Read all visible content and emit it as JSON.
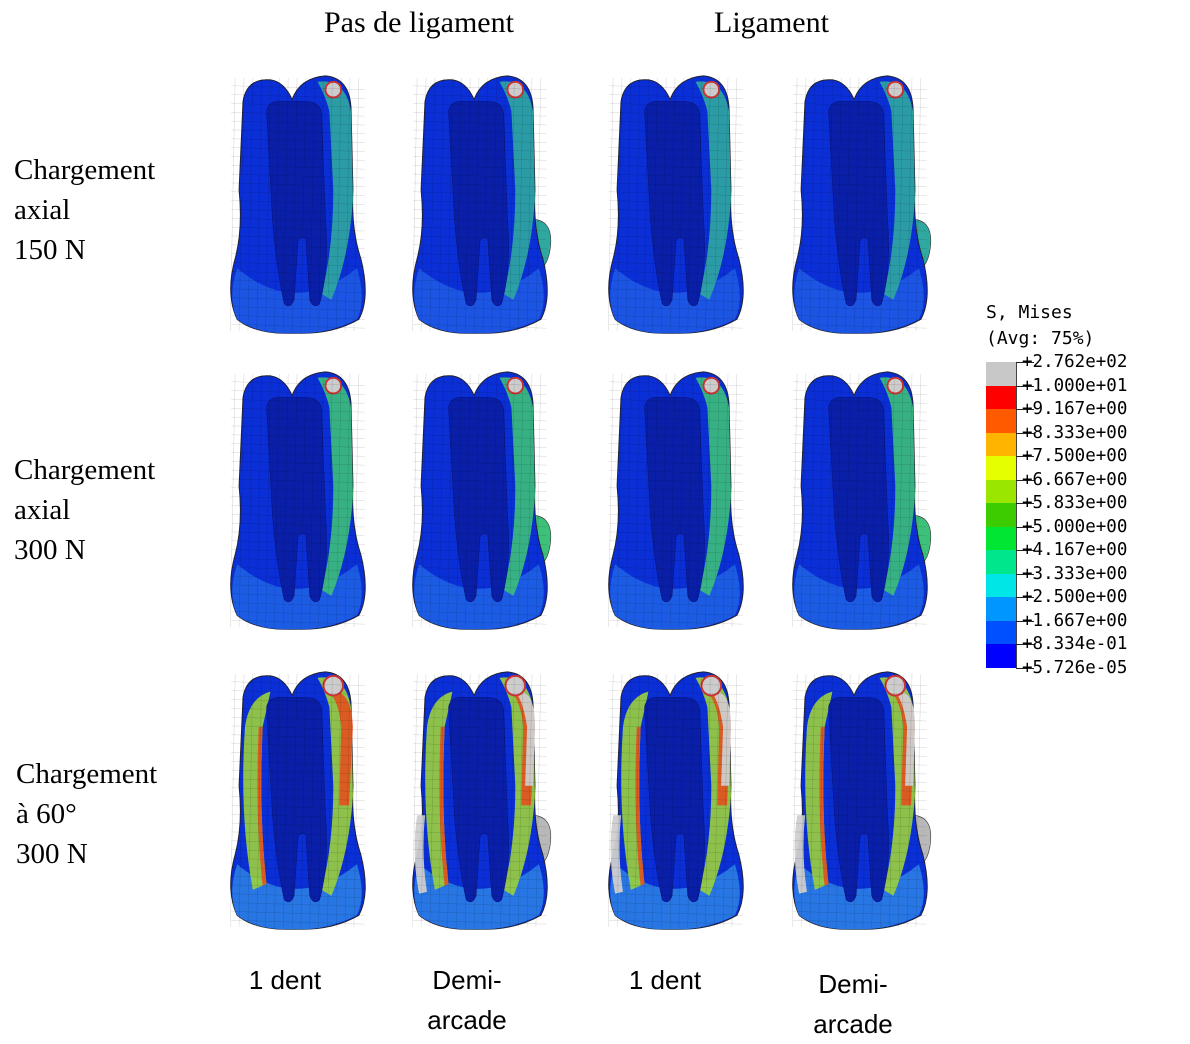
{
  "column_groups": [
    "Pas de ligament",
    "Ligament"
  ],
  "rows": [
    {
      "lines": [
        "Chargement",
        "axial",
        "150 N"
      ],
      "load": "axial150"
    },
    {
      "lines": [
        "Chargement",
        "axial",
        "300 N"
      ],
      "load": "axial300"
    },
    {
      "lines": [
        "Chargement",
        "à 60°",
        "300 N"
      ],
      "load": "oblique300"
    }
  ],
  "columns": [
    {
      "lines": [
        "1 dent"
      ],
      "group": "Pas de ligament"
    },
    {
      "lines": [
        "Demi-",
        "arcade"
      ],
      "group": "Pas de ligament"
    },
    {
      "lines": [
        "1 dent"
      ],
      "group": "Ligament"
    },
    {
      "lines": [
        "Demi-",
        "arcade"
      ],
      "group": "Ligament"
    }
  ],
  "legend": {
    "title_lines": [
      "S, Mises",
      "(Avg: 75%)"
    ],
    "values": [
      "+2.762e+02",
      "+1.000e+01",
      "+9.167e+00",
      "+8.333e+00",
      "+7.500e+00",
      "+6.667e+00",
      "+5.833e+00",
      "+5.000e+00",
      "+4.167e+00",
      "+3.333e+00",
      "+2.500e+00",
      "+1.667e+00",
      "+8.334e-01",
      "+5.726e-05"
    ],
    "colors": [
      "#c8c8c8",
      "#ff0000",
      "#ff5a00",
      "#ffb400",
      "#e6ff00",
      "#9be600",
      "#3ccc00",
      "#00e632",
      "#00e68c",
      "#00e6e6",
      "#0096ff",
      "#0050ff",
      "#0000ff"
    ]
  }
}
